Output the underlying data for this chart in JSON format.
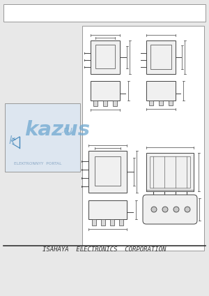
{
  "bg_color": "#e8e8e8",
  "page_bg": "#ffffff",
  "border_color": "#888888",
  "line_color": "#555555",
  "footer_text": "ISAHAYA  ELECTRONICS  CORPORATION",
  "footer_fontsize": 6.5,
  "watermark_text": "kazus",
  "watermark_sub": ".ru",
  "watermark_portal": "ELEKTRONNYY  PORTAL"
}
